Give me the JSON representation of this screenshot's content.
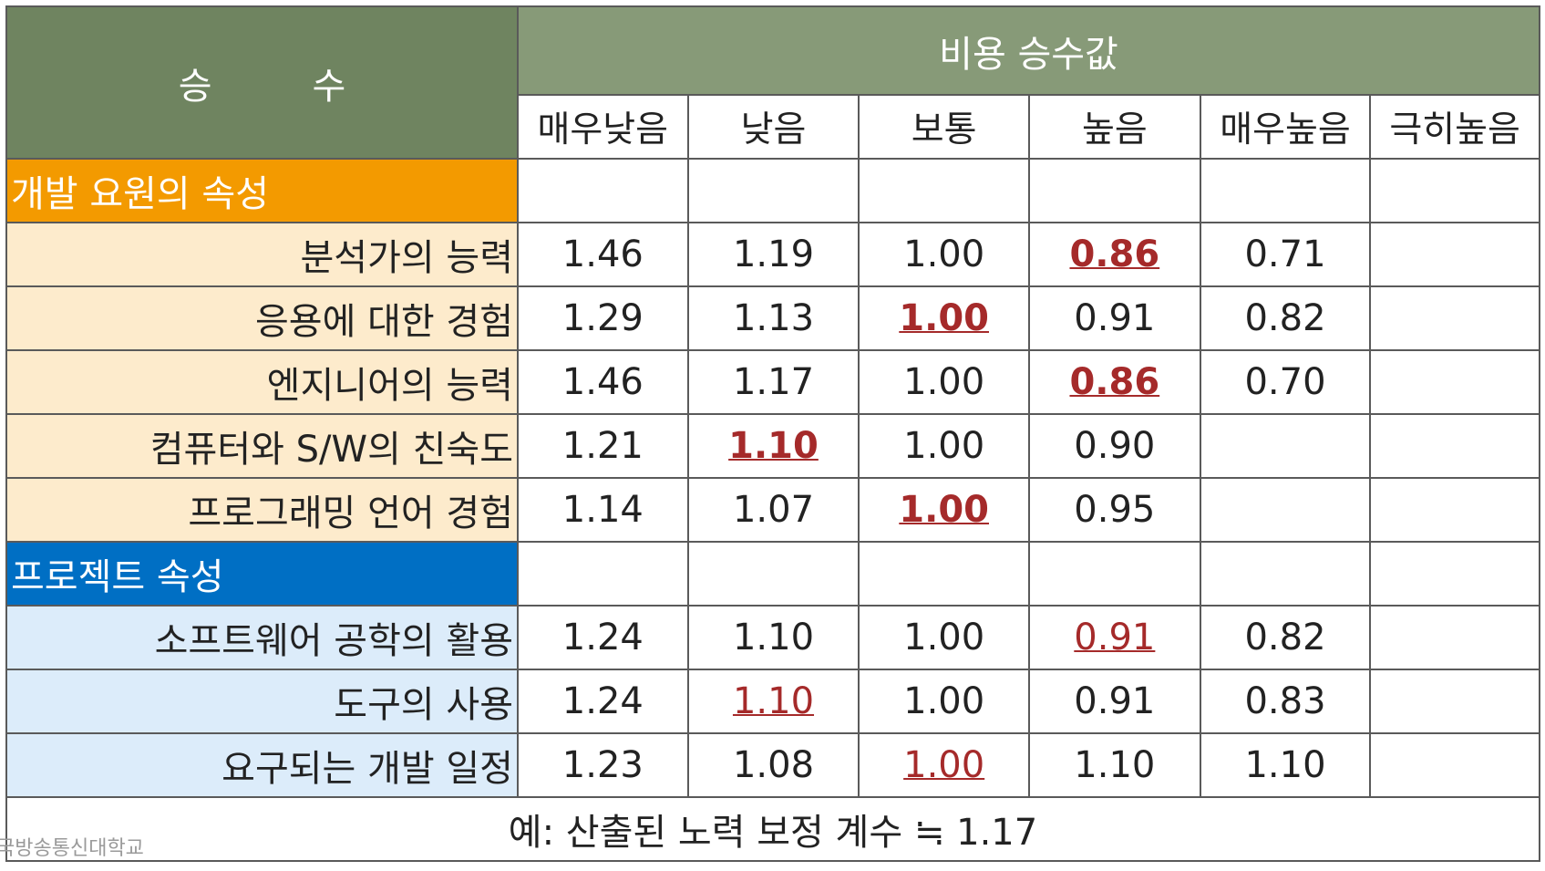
{
  "header": {
    "left_char1": "승",
    "left_char2": "수",
    "top": "비용 승수값",
    "columns": [
      "매우낮음",
      "낮음",
      "보통",
      "높음",
      "매우높음",
      "극히높음"
    ]
  },
  "sections": [
    {
      "title": "개발 요원의 속성",
      "rows": [
        {
          "label": "분석가의 능력",
          "values": [
            "1.46",
            "1.19",
            "1.00",
            "0.86",
            "0.71",
            ""
          ],
          "highlight": 3,
          "bold": true
        },
        {
          "label": "응용에 대한 경험",
          "values": [
            "1.29",
            "1.13",
            "1.00",
            "0.91",
            "0.82",
            ""
          ],
          "highlight": 2,
          "bold": true
        },
        {
          "label": "엔지니어의 능력",
          "values": [
            "1.46",
            "1.17",
            "1.00",
            "0.86",
            "0.70",
            ""
          ],
          "highlight": 3,
          "bold": true
        },
        {
          "label": "컴퓨터와 S/W의 친숙도",
          "values": [
            "1.21",
            "1.10",
            "1.00",
            "0.90",
            "",
            ""
          ],
          "highlight": 1,
          "bold": true
        },
        {
          "label": "프로그래밍 언어 경험",
          "values": [
            "1.14",
            "1.07",
            "1.00",
            "0.95",
            "",
            ""
          ],
          "highlight": 2,
          "bold": true
        }
      ]
    },
    {
      "title": "프로젝트 속성",
      "rows": [
        {
          "label": "소프트웨어 공학의 활용",
          "values": [
            "1.24",
            "1.10",
            "1.00",
            "0.91",
            "0.82",
            ""
          ],
          "highlight": 3,
          "bold": false
        },
        {
          "label": "도구의 사용",
          "values": [
            "1.24",
            "1.10",
            "1.00",
            "0.91",
            "0.83",
            ""
          ],
          "highlight": 1,
          "bold": false
        },
        {
          "label": "요구되는 개발 일정",
          "values": [
            "1.23",
            "1.08",
            "1.00",
            "1.10",
            "1.10",
            ""
          ],
          "highlight": 2,
          "bold": false
        }
      ]
    }
  ],
  "footer": "예: 산출된 노력 보정 계수 ≒ 1.17",
  "watermark": "국방송통신대학교",
  "colors": {
    "header_dark": "#6f8460",
    "header_light": "#879a78",
    "section1": "#f39a00",
    "section1_rows": "#fdebcc",
    "section2": "#006fc4",
    "section2_rows": "#dcecfa",
    "highlight": "#a52a2a"
  }
}
